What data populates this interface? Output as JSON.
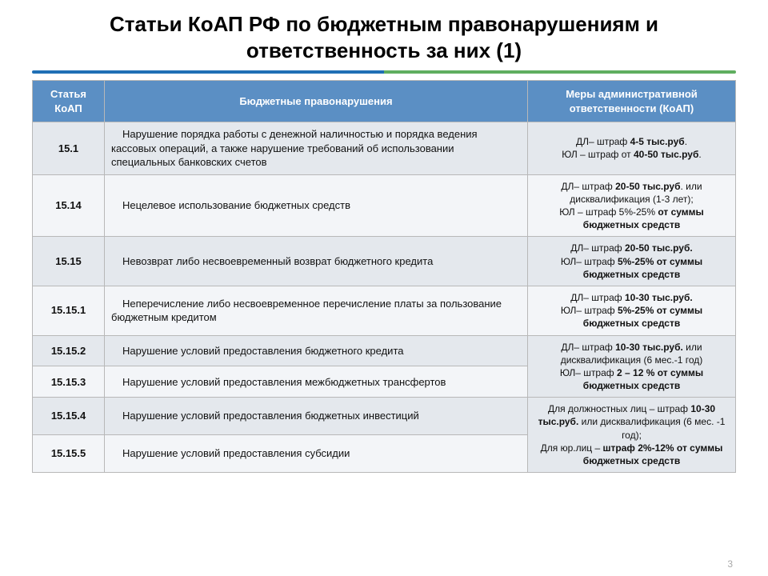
{
  "title_line1": "Статьи КоАП РФ по бюджетным правонарушениям и",
  "title_line2": "ответственность за них (1)",
  "columns": {
    "article": "Статья КоАП",
    "violation": "Бюджетные правонарушения",
    "penalty": "Меры административной ответственности (КоАП)"
  },
  "rows": [
    {
      "article": "15.1",
      "violation": "Нарушение порядка работы с денежной наличностью и порядка ведения кассовых операций, а также нарушение требований об использовании специальных банковских счетов",
      "penalty": "ДЛ– штраф <b>4-5 тыс.руб</b>.<br>ЮЛ – штраф от <b>40-50 тыс.руб</b>."
    },
    {
      "article": "15.14",
      "violation": "Нецелевое использование бюджетных средств",
      "penalty": "ДЛ– штраф <b>20-50 тыс.руб</b>. или дисквалификация (1-3 лет);<br>ЮЛ – штраф 5%-25% <b>от суммы бюджетных средств</b>"
    },
    {
      "article": "15.15",
      "violation": "Невозврат либо несвоевременный возврат бюджетного кредита",
      "penalty": "ДЛ– штраф <b>20-50 тыс.руб.</b><br>ЮЛ– штраф <b>5%-25%</b> <b>от суммы бюджетных средств</b>"
    },
    {
      "article": "15.15.1",
      "violation": "Неперечисление либо несвоевременное перечисление платы за пользование бюджетным кредитом",
      "penalty": "ДЛ– штраф <b>10-30 тыс.руб.</b><br>ЮЛ– штраф <b>5%-25% от суммы бюджетных средств</b>"
    },
    {
      "article": "15.15.2",
      "violation": "Нарушение условий предоставления бюджетного кредита",
      "penalty_rowspan": 2,
      "penalty": "ДЛ– штраф <b>10-30 тыс.руб.</b> или дисквалификация (6 мес.-1 год)<br>ЮЛ– штраф <b>2 – 12 % от суммы бюджетных средств</b>"
    },
    {
      "article": "15.15.3",
      "violation": "Нарушение условий предоставления межбюджетных трансфертов"
    },
    {
      "article": "15.15.4",
      "violation": "Нарушение условий предоставления бюджетных инвестиций",
      "penalty_rowspan": 2,
      "penalty": "Для должностных лиц – штраф <b>10-30 тыс.руб.</b> или дисквалификация (6 мес. -1 год);<br>Для юр.лиц – <b>штраф 2%-12% от суммы бюджетных средств</b>"
    },
    {
      "article": "15.15.5",
      "violation": "Нарушение условий предоставления субсидии"
    }
  ],
  "footer": "3",
  "colors": {
    "header_bg": "#5b8fc4",
    "header_fg": "#ffffff",
    "border": "#b8b8b8",
    "row_odd": "#e4e8ed",
    "row_even": "#f3f5f8",
    "accent_blue": "#1f6fb5",
    "accent_green": "#5fae5f"
  }
}
